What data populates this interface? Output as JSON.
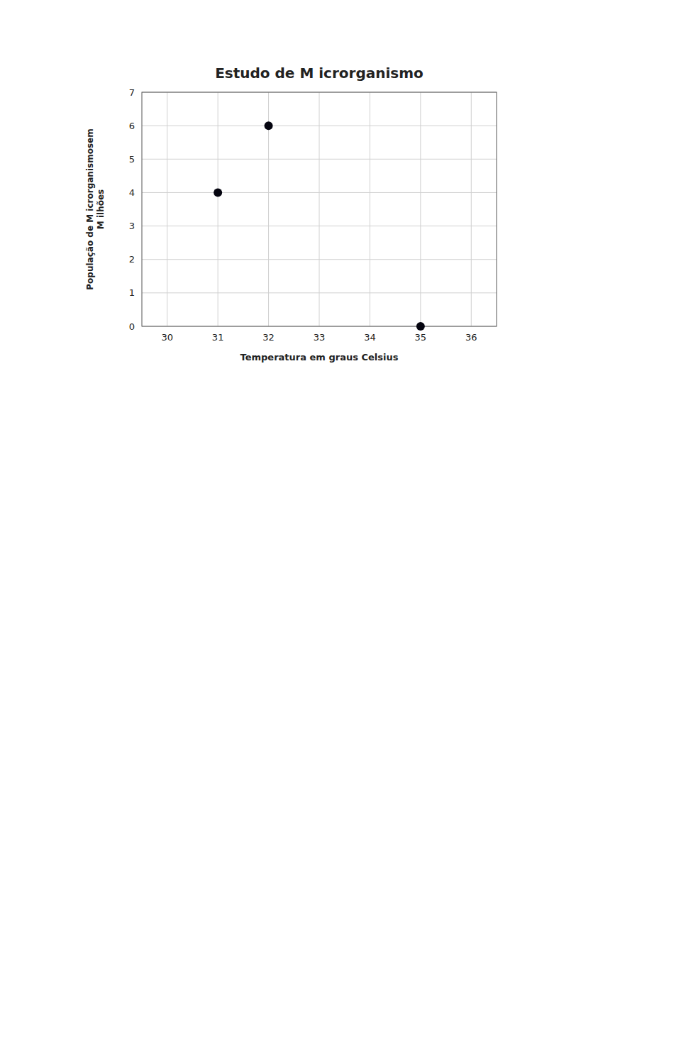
{
  "chart_data": {
    "type": "scatter",
    "title": "Estudo de M icrorganismo",
    "xlabel": "Temperatura em graus Celsius",
    "ylabel": [
      "População de M icrorganismosem",
      "M ilhões"
    ],
    "x": [
      31,
      32,
      35
    ],
    "values": [
      4,
      6,
      0
    ],
    "color": "#050510",
    "xlim": [
      29.5,
      36.5
    ],
    "ylim": [
      0,
      7
    ],
    "xticks": [
      30,
      31,
      32,
      33,
      34,
      35,
      36
    ],
    "yticks": [
      0,
      1,
      2,
      3,
      4,
      5,
      6,
      7
    ],
    "grid": true
  }
}
